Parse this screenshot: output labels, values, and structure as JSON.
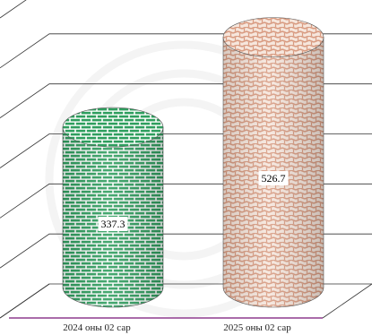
{
  "chart_data": {
    "type": "bar",
    "shape": "cylinder-3d",
    "categories": [
      "2024 оны 02 сар",
      "2025 оны 02 сар"
    ],
    "values": [
      337.3,
      526.7
    ],
    "value_labels": [
      "337.3",
      "526.7"
    ],
    "ylim": [
      0,
      600
    ],
    "grid": true,
    "legend": "none",
    "title": "",
    "xlabel": "",
    "ylabel": "",
    "colors": {
      "series_fills": [
        "#2e9e5e",
        "#d89a80"
      ],
      "series_mortar": [
        "#ffffff",
        "#f6e6dc"
      ],
      "gridline": "#333333",
      "base_line": "#8e3b8e"
    }
  }
}
